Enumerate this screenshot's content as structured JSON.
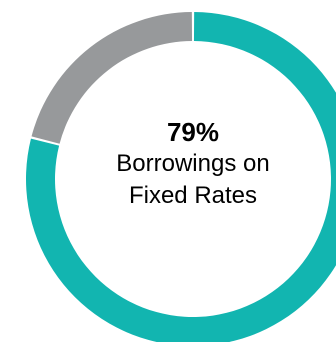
{
  "chart_data": {
    "type": "pie",
    "style": "donut",
    "center_value": "79%",
    "center_label_line1": "Borrowings on",
    "center_label_line2": "Fixed Rates",
    "slices": [
      {
        "label": "Fixed Rates",
        "value": 79,
        "color": "#12b5b0"
      },
      {
        "label": "",
        "value": 21,
        "color": "#97999b"
      }
    ]
  }
}
